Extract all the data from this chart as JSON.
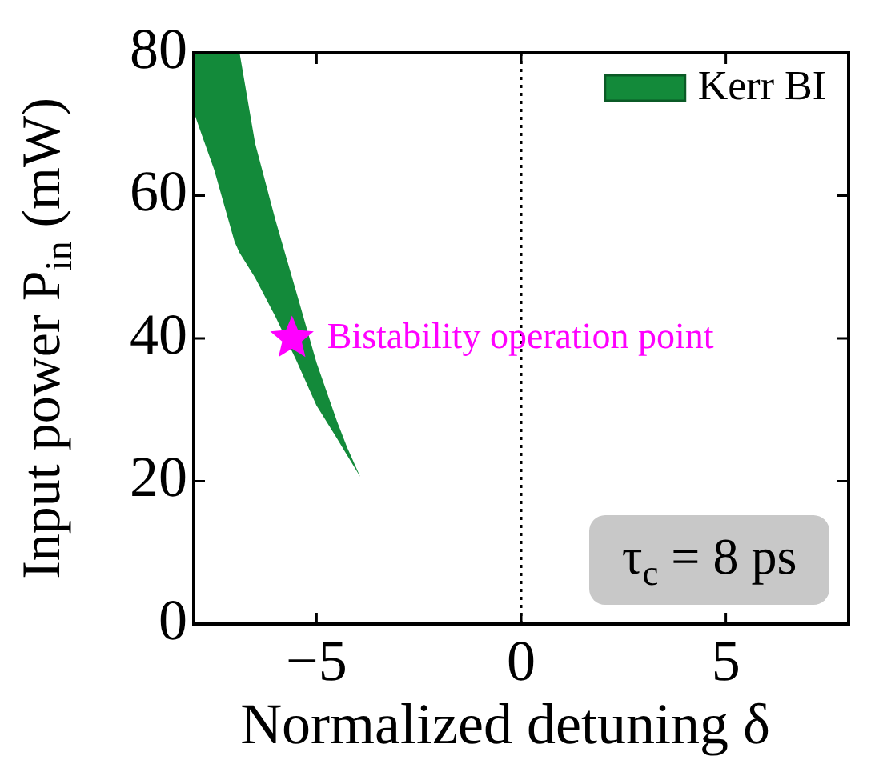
{
  "chart_data": {
    "type": "area",
    "xlabel": "Normalized detuning δ",
    "ylabel": "Input power P$_{in}$ (mW)",
    "xlim": [
      -8,
      8
    ],
    "xticks": [
      -5,
      0,
      5
    ],
    "ylim": [
      0,
      80
    ],
    "yticks": [
      0,
      20,
      40,
      60,
      80
    ],
    "grid": false,
    "legend": "top right",
    "series": [
      {
        "name": "Kerr BI",
        "color": "#138a3a",
        "x": [
          -8,
          -7.5,
          -7,
          -6.88,
          -6.5,
          -6,
          -5.5,
          -5,
          -4.5,
          -4.25,
          -3.93
        ],
        "values": [
          null,
          null,
          null,
          null,
          null,
          null,
          null,
          null,
          null,
          null,
          null
        ],
        "lower": [
          71.7,
          63.6,
          53.5,
          52,
          48.5,
          43,
          37,
          30.6,
          26,
          23.6,
          20.6
        ],
        "upper": [
          80,
          80,
          80,
          80,
          67.3,
          56.5,
          46.6,
          36.6,
          28.4,
          24.7,
          20.6
        ]
      },
      {
        "type": "scatter",
        "color": "#ff00ff",
        "marker": "star",
        "x": [
          -5.6
        ],
        "values": [
          40
        ]
      }
    ],
    "ref_lines": [
      {
        "axis": "x",
        "value": 0,
        "line_style": "dotted",
        "color": "#000000"
      }
    ],
    "annotations": [
      {
        "text": "Bistability operation point",
        "x": -5.6,
        "y": 40
      },
      "τ$_{c}$ = 8 ps"
    ]
  }
}
